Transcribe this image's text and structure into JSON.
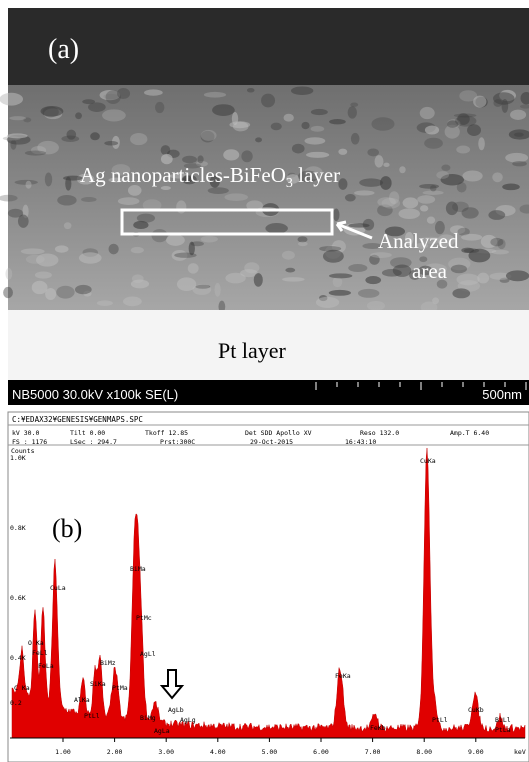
{
  "panel_a": {
    "label": "(a)",
    "layer_text": "Ag nanoparticles-BiFeO",
    "layer_sub": "3",
    "layer_tail": " layer",
    "analyzed_1": "Analyzed",
    "analyzed_2": "area",
    "pt_layer": "Pt layer",
    "info": "NB5000 30.0kV x100k SE(L)",
    "scale": "500nm"
  },
  "panel_b": {
    "label": "(b)",
    "path": "C:¥EDAX32¥GENESIS¥GENMAPS.SPC",
    "row1": [
      "kV 30.0",
      "Tilt 0.00",
      "Tkoff 12.85",
      "Det SDD Apollo XV",
      "Reso 132.0",
      "Amp.T 6.40"
    ],
    "row2": [
      "FS : 1176",
      "LSec : 294.7",
      "Prst:300C",
      "29-Oct-2015",
      "16:43:10"
    ],
    "y_title": "Counts",
    "y_labels": [
      "1.0K",
      "0.8K",
      "0.6K",
      "0.4K",
      "0.2"
    ],
    "x_labels": [
      "1.00",
      "2.00",
      "3.00",
      "4.00",
      "5.00",
      "6.00",
      "7.00",
      "8.00",
      "9.00"
    ],
    "x_unit": "keV",
    "peaks": [
      "C Ka",
      "O Ka",
      "FeLl",
      "FeLa",
      "CuLa",
      "AlKa",
      "PtLl",
      "SiKa",
      "BiMz",
      "PtMa",
      "BiMa",
      "PtMc",
      "AgLl",
      "BiMg",
      "AgLa",
      "AgLb",
      "AgLg",
      "FeKa",
      "FeKb",
      "CuKa",
      "PtLl",
      "CuKb",
      "BiLl",
      "PtLa"
    ]
  }
}
